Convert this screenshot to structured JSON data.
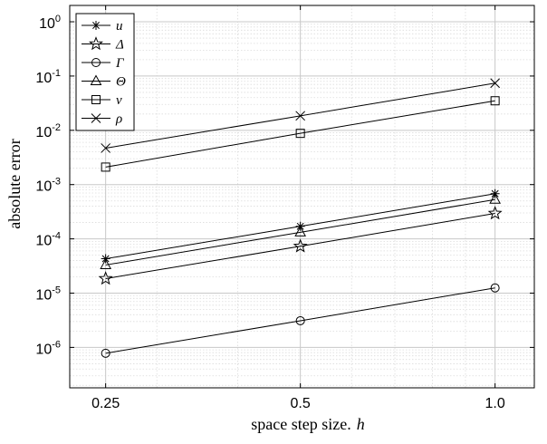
{
  "chart_data": {
    "type": "line",
    "x_scale": "log",
    "y_scale": "log",
    "xlabel": "space step size.",
    "xlabel_var": "h",
    "ylabel": "absolute error",
    "xlim": [
      0.22,
      1.15
    ],
    "ylim": [
      1.8e-07,
      2.0
    ],
    "x_ticks": [
      0.25,
      0.5,
      1.0
    ],
    "x_tick_labels": [
      "0.25",
      "0.5",
      "1.0"
    ],
    "y_ticks": [
      1e-06,
      1e-05,
      0.0001,
      0.001,
      0.01,
      0.1,
      1.0
    ],
    "y_tick_labels": [
      {
        "base": "10",
        "exp": "-6"
      },
      {
        "base": "10",
        "exp": "-5"
      },
      {
        "base": "10",
        "exp": "-4"
      },
      {
        "base": "10",
        "exp": "-3"
      },
      {
        "base": "10",
        "exp": "-2"
      },
      {
        "base": "10",
        "exp": "-1"
      },
      {
        "base": "10",
        "exp": "0"
      }
    ],
    "grid": true,
    "minor_grid": true,
    "legend_position": "top-left",
    "x": [
      0.25,
      0.5,
      1.0
    ],
    "series": [
      {
        "name": "u",
        "marker": "asterisk",
        "values": [
          4.3e-05,
          0.00017,
          0.00068
        ]
      },
      {
        "name": "Δ",
        "marker": "star",
        "values": [
          1.85e-05,
          7.3e-05,
          0.000295
        ]
      },
      {
        "name": "Γ",
        "marker": "circle",
        "values": [
          7.8e-07,
          3.1e-06,
          1.25e-05
        ]
      },
      {
        "name": "Θ",
        "marker": "triangle",
        "values": [
          3.3e-05,
          0.000132,
          0.00053
        ]
      },
      {
        "name": "ν",
        "marker": "square",
        "values": [
          0.0021,
          0.0088,
          0.035
        ]
      },
      {
        "name": "ρ",
        "marker": "x",
        "values": [
          0.0047,
          0.0185,
          0.074
        ]
      }
    ],
    "line_color": "#000000"
  }
}
